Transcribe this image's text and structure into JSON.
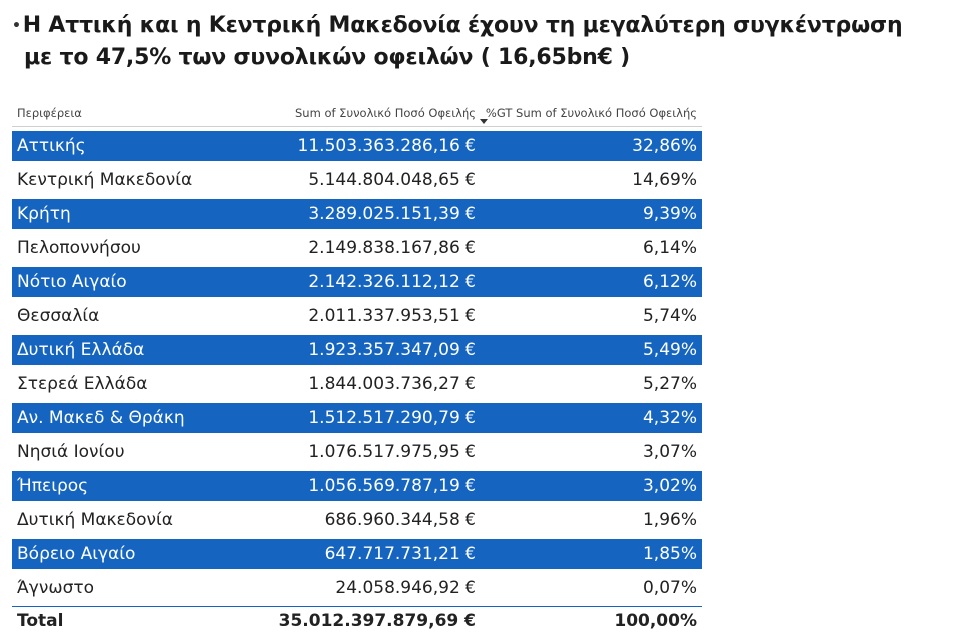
{
  "title": {
    "line1": "Η Αττική και η Κεντρική Μακεδονία  έχουν τη μεγαλύτερη συγκέντρωση",
    "line2": "με το 47,5% των συνολικών οφειλών ( 16,65bn€ )"
  },
  "table": {
    "headers": {
      "region": "Περιφέρεια",
      "sum": "Sum of Συνολικό Ποσό Οφειλής",
      "pct": "%GT Sum of Συνολικό Ποσό Οφειλής"
    },
    "rows": [
      {
        "region": "Αττικής",
        "sum": "11.503.363.286,16 €",
        "pct": "32,86%"
      },
      {
        "region": "Κεντρική Μακεδονία",
        "sum": "5.144.804.048,65 €",
        "pct": "14,69%"
      },
      {
        "region": "Κρήτη",
        "sum": "3.289.025.151,39 €",
        "pct": "9,39%"
      },
      {
        "region": "Πελοποννήσου",
        "sum": "2.149.838.167,86 €",
        "pct": "6,14%"
      },
      {
        "region": "Νότιο Αιγαίο",
        "sum": "2.142.326.112,12 €",
        "pct": "6,12%"
      },
      {
        "region": "Θεσσαλία",
        "sum": "2.011.337.953,51 €",
        "pct": "5,74%"
      },
      {
        "region": "Δυτική Ελλάδα",
        "sum": "1.923.357.347,09 €",
        "pct": "5,49%"
      },
      {
        "region": "Στερεά Ελλάδα",
        "sum": "1.844.003.736,27 €",
        "pct": "5,27%"
      },
      {
        "region": "Αν. Μακεδ & Θράκη",
        "sum": "1.512.517.290,79 €",
        "pct": "4,32%"
      },
      {
        "region": "Νησιά Ιονίου",
        "sum": "1.076.517.975,95 €",
        "pct": "3,07%"
      },
      {
        "region": "Ήπειρος",
        "sum": "1.056.569.787,19 €",
        "pct": "3,02%"
      },
      {
        "region": "Δυτική Μακεδονία",
        "sum": "686.960.344,58 €",
        "pct": "1,96%"
      },
      {
        "region": "Βόρειο Αιγαίο",
        "sum": "647.717.731,21 €",
        "pct": "1,85%"
      },
      {
        "region": "Άγνωστο",
        "sum": "24.058.946,92 €",
        "pct": "0,07%"
      }
    ],
    "total": {
      "label": "Total",
      "sum": "35.012.397.879,69 €",
      "pct": "100,00%"
    }
  },
  "colors": {
    "band": "#1565c0",
    "band_text": "#ffffff"
  },
  "icons": {
    "sort": "sort-descending-icon"
  }
}
